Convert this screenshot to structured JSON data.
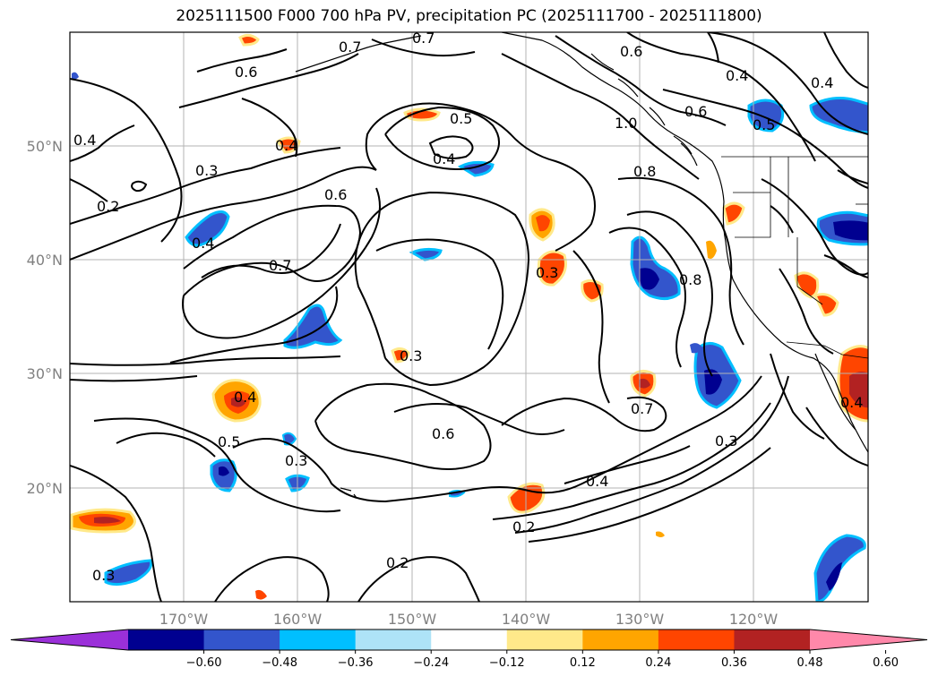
{
  "title": "2025111500 F000 700 hPa PV, precipitation PC (2025111700 - 2025111800)",
  "lat_ticks": [
    "50°N",
    "40°N",
    "30°N",
    "20°N"
  ],
  "lon_ticks": [
    "170°W",
    "160°W",
    "150°W",
    "140°W",
    "130°W",
    "120°W"
  ],
  "contour_labels": [
    "0.7",
    "0.7",
    "0.6",
    "0.6",
    "0.4",
    "0.4",
    "0.5",
    "0.4",
    "0.5",
    "1.0",
    "0.6",
    "0.4",
    "0.3",
    "0.2",
    "0.4",
    "0.6",
    "0.8",
    "0.7",
    "0.4",
    "0.8",
    "0.3",
    "0.3",
    "0.4",
    "0.5",
    "0.3",
    "0.6",
    "0.7",
    "0.3",
    "0.4",
    "0.2",
    "0.2",
    "0.3",
    "0.4"
  ],
  "colorbar": {
    "ticks": [
      "−0.60",
      "−0.48",
      "−0.36",
      "−0.24",
      "−0.12",
      "0.12",
      "0.24",
      "0.36",
      "0.48",
      "0.60"
    ],
    "colors": [
      "#9b30d9",
      "#000090",
      "#3355cc",
      "#00bfff",
      "#aee3f7",
      "#ffffff",
      "#ffe98a",
      "#ffa500",
      "#ff4500",
      "#b22222",
      "#ff88aa"
    ]
  }
}
